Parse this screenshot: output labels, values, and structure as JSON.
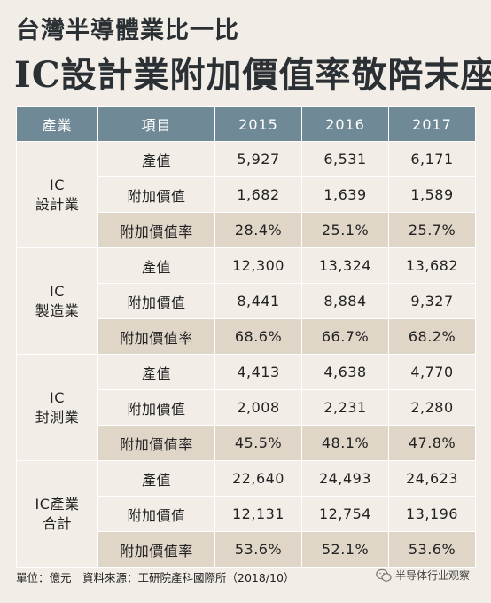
{
  "title": {
    "line1": "台灣半導體業比一比",
    "line2": "IC設計業附加價值率敬陪末座"
  },
  "table": {
    "headers": [
      "產業",
      "項目",
      "2015",
      "2016",
      "2017"
    ],
    "groups": [
      {
        "name_line1": "IC",
        "name_line2": "設計業",
        "rows": [
          {
            "item": "產值",
            "values": [
              "5,927",
              "6,531",
              "6,171"
            ]
          },
          {
            "item": "附加價值",
            "values": [
              "1,682",
              "1,639",
              "1,589"
            ]
          },
          {
            "item": "附加價值率",
            "values": [
              "28.4%",
              "25.1%",
              "25.7%"
            ]
          }
        ]
      },
      {
        "name_line1": "IC",
        "name_line2": "製造業",
        "rows": [
          {
            "item": "產值",
            "values": [
              "12,300",
              "13,324",
              "13,682"
            ]
          },
          {
            "item": "附加價值",
            "values": [
              "8,441",
              "8,884",
              "9,327"
            ]
          },
          {
            "item": "附加價值率",
            "values": [
              "68.6%",
              "66.7%",
              "68.2%"
            ]
          }
        ]
      },
      {
        "name_line1": "IC",
        "name_line2": "封測業",
        "rows": [
          {
            "item": "產值",
            "values": [
              "4,413",
              "4,638",
              "4,770"
            ]
          },
          {
            "item": "附加價值",
            "values": [
              "2,008",
              "2,231",
              "2,280"
            ]
          },
          {
            "item": "附加價值率",
            "values": [
              "45.5%",
              "48.1%",
              "47.8%"
            ]
          }
        ]
      },
      {
        "name_line1": "IC產業",
        "name_line2": "合計",
        "rows": [
          {
            "item": "產值",
            "values": [
              "22,640",
              "24,493",
              "24,623"
            ]
          },
          {
            "item": "附加價值",
            "values": [
              "12,131",
              "12,754",
              "13,196"
            ]
          },
          {
            "item": "附加價值率",
            "values": [
              "53.6%",
              "52.1%",
              "53.6%"
            ]
          }
        ]
      }
    ]
  },
  "footer": {
    "note": "單位：億元　資料來源：工研院產科國際所（2018/10）"
  },
  "watermark": {
    "icon": "wechat-icon",
    "text": "半导体行业观察"
  },
  "colors": {
    "header_bg": "#6f8a96",
    "rate_row_bg": "#e0d6c8",
    "page_bg": "#f2eee7"
  }
}
